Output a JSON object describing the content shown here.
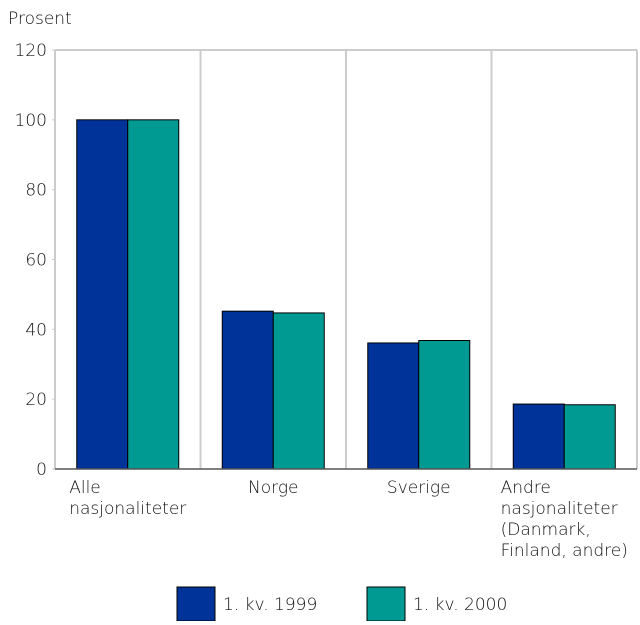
{
  "chart_data": {
    "type": "bar",
    "y_label": "Prosent",
    "categories": [
      "Alle\nnasjonaliteter",
      "Norge",
      "Sverige",
      "Andre\nnasjonaliteter\n(Danmark,\nFinland, andre)"
    ],
    "series": [
      {
        "name": "1. kv. 1999",
        "color": "#003399",
        "values": [
          100,
          45.2,
          36.1,
          18.6
        ]
      },
      {
        "name": "1. kv. 2000",
        "color": "#009a93",
        "values": [
          100,
          44.7,
          36.8,
          18.4
        ]
      }
    ],
    "ylim": [
      0,
      120
    ],
    "yticks": [
      0,
      20,
      40,
      60,
      80,
      100,
      120
    ],
    "grid": true
  }
}
